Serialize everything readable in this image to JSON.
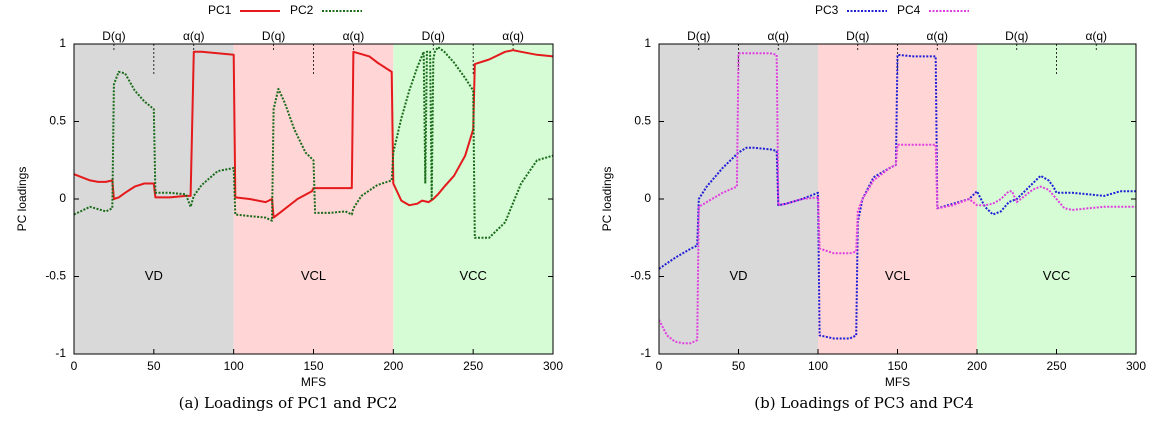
{
  "chart_data": [
    {
      "type": "line",
      "caption": "(a) Loadings of PC1 and PC2",
      "xlabel": "MFS",
      "ylabel": "PC loadings",
      "xlim": [
        0,
        300
      ],
      "ylim": [
        -1,
        1
      ],
      "xticks": [
        "0",
        "50",
        "100",
        "150",
        "200",
        "250",
        "300"
      ],
      "yticks": [
        "-1",
        "-0.5",
        "0",
        "0.5",
        "1"
      ],
      "grid": false,
      "legend_position": "top-center",
      "regions": [
        {
          "label": "VD",
          "x0": 0,
          "x1": 100,
          "color": "#d9d9d9"
        },
        {
          "label": "VCL",
          "x0": 100,
          "x1": 200,
          "color": "#ffd5d5"
        },
        {
          "label": "VCC",
          "x0": 200,
          "x1": 300,
          "color": "#d5fcd5"
        }
      ],
      "top_markers": [
        {
          "label": "D(q)",
          "x": 25
        },
        {
          "label": "",
          "x": 50
        },
        {
          "label": "α(q)",
          "x": 75
        },
        {
          "label": "D(q)",
          "x": 125
        },
        {
          "label": "",
          "x": 150
        },
        {
          "label": "α(q)",
          "x": 175
        },
        {
          "label": "D(q)",
          "x": 225
        },
        {
          "label": "",
          "x": 250
        },
        {
          "label": "α(q)",
          "x": 275
        }
      ],
      "series": [
        {
          "name": "PC1",
          "color": "#e41a1c",
          "style": "solid",
          "x": [
            0,
            5,
            10,
            15,
            20,
            24,
            25,
            28,
            32,
            38,
            44,
            50,
            51,
            60,
            70,
            73,
            75,
            80,
            90,
            100,
            101,
            110,
            120,
            122,
            124,
            125,
            130,
            140,
            149,
            150,
            160,
            170,
            174,
            175,
            185,
            190,
            199,
            200,
            205,
            210,
            215,
            218,
            222,
            225,
            228,
            232,
            238,
            245,
            250,
            251,
            260,
            270,
            275,
            280,
            290,
            300
          ],
          "y": [
            0.16,
            0.14,
            0.12,
            0.11,
            0.11,
            0.12,
            0.0,
            0.01,
            0.04,
            0.08,
            0.1,
            0.1,
            0.01,
            0.01,
            0.02,
            0.02,
            0.95,
            0.95,
            0.94,
            0.93,
            0.01,
            0.0,
            -0.02,
            -0.01,
            0.0,
            -0.12,
            -0.08,
            0.0,
            0.05,
            0.07,
            0.07,
            0.07,
            0.07,
            0.95,
            0.92,
            0.88,
            0.82,
            0.1,
            -0.01,
            -0.04,
            -0.03,
            -0.01,
            -0.02,
            0.0,
            0.03,
            0.08,
            0.15,
            0.28,
            0.45,
            0.87,
            0.9,
            0.95,
            0.96,
            0.95,
            0.93,
            0.92
          ]
        },
        {
          "name": "PC2",
          "color": "#1a6b1a",
          "style": "dotted",
          "x": [
            0,
            10,
            20,
            24,
            25,
            28,
            32,
            38,
            44,
            50,
            51,
            60,
            70,
            73,
            75,
            80,
            90,
            100,
            101,
            110,
            120,
            124,
            125,
            128,
            132,
            138,
            145,
            150,
            151,
            160,
            170,
            174,
            175,
            180,
            190,
            199,
            200,
            205,
            210,
            215,
            219,
            220,
            221,
            223,
            224,
            225,
            226,
            228,
            232,
            238,
            245,
            250,
            251,
            260,
            270,
            280,
            290,
            300
          ],
          "y": [
            -0.1,
            -0.05,
            -0.08,
            -0.06,
            0.74,
            0.82,
            0.81,
            0.7,
            0.63,
            0.58,
            0.04,
            0.04,
            0.03,
            -0.05,
            0.02,
            0.09,
            0.18,
            0.2,
            -0.1,
            -0.11,
            -0.12,
            -0.14,
            0.58,
            0.71,
            0.62,
            0.45,
            0.3,
            0.25,
            -0.09,
            -0.09,
            -0.08,
            -0.1,
            -0.06,
            0.02,
            0.09,
            0.12,
            0.3,
            0.52,
            0.7,
            0.85,
            0.95,
            0.1,
            0.95,
            0.95,
            0.0,
            0.9,
            0.95,
            0.98,
            0.95,
            0.88,
            0.78,
            0.7,
            -0.25,
            -0.25,
            -0.15,
            0.1,
            0.25,
            0.28
          ]
        }
      ]
    },
    {
      "type": "line",
      "caption": "(b) Loadings of PC3 and PC4",
      "xlabel": "MFS",
      "ylabel": "PC loadings",
      "xlim": [
        0,
        300
      ],
      "ylim": [
        -1,
        1
      ],
      "xticks": [
        "0",
        "50",
        "100",
        "150",
        "200",
        "250",
        "300"
      ],
      "yticks": [
        "-1",
        "-0.5",
        "0",
        "0.5",
        "1"
      ],
      "grid": false,
      "legend_position": "top-center",
      "regions": [
        {
          "label": "VD",
          "x0": 0,
          "x1": 100,
          "color": "#d9d9d9"
        },
        {
          "label": "VCL",
          "x0": 100,
          "x1": 200,
          "color": "#ffd5d5"
        },
        {
          "label": "VCC",
          "x0": 200,
          "x1": 300,
          "color": "#d5fcd5"
        }
      ],
      "top_markers": [
        {
          "label": "D(q)",
          "x": 25
        },
        {
          "label": "",
          "x": 50
        },
        {
          "label": "α(q)",
          "x": 75
        },
        {
          "label": "D(q)",
          "x": 125
        },
        {
          "label": "",
          "x": 150
        },
        {
          "label": "α(q)",
          "x": 175
        },
        {
          "label": "D(q)",
          "x": 225
        },
        {
          "label": "",
          "x": 250
        },
        {
          "label": "α(q)",
          "x": 275
        }
      ],
      "series": [
        {
          "name": "PC3",
          "color": "#1f1fd6",
          "style": "dotted",
          "x": [
            0,
            10,
            20,
            24,
            25,
            30,
            40,
            50,
            55,
            60,
            70,
            74,
            75,
            80,
            90,
            100,
            101,
            110,
            120,
            124,
            125,
            128,
            135,
            145,
            149,
            150,
            160,
            170,
            174,
            175,
            185,
            195,
            200,
            205,
            210,
            215,
            220,
            225,
            230,
            235,
            240,
            245,
            248,
            250,
            260,
            270,
            280,
            290,
            300
          ],
          "y": [
            -0.45,
            -0.38,
            -0.32,
            -0.3,
            0.0,
            0.08,
            0.2,
            0.3,
            0.33,
            0.33,
            0.32,
            0.31,
            -0.04,
            -0.03,
            0.0,
            0.04,
            -0.88,
            -0.9,
            -0.9,
            -0.88,
            -0.15,
            0.0,
            0.14,
            0.2,
            0.22,
            0.93,
            0.92,
            0.92,
            0.92,
            -0.06,
            -0.03,
            0.0,
            0.05,
            -0.05,
            -0.1,
            -0.08,
            -0.02,
            0.0,
            0.05,
            0.1,
            0.15,
            0.12,
            0.08,
            0.04,
            0.04,
            0.03,
            0.02,
            0.05,
            0.05
          ]
        },
        {
          "name": "PC4",
          "color": "#e03fe0",
          "style": "dotted",
          "x": [
            0,
            5,
            10,
            15,
            20,
            24,
            25,
            30,
            40,
            49,
            50,
            55,
            60,
            70,
            74,
            75,
            80,
            90,
            100,
            101,
            110,
            120,
            124,
            125,
            128,
            135,
            145,
            149,
            150,
            160,
            170,
            174,
            175,
            185,
            195,
            200,
            205,
            210,
            215,
            220,
            222,
            225,
            230,
            235,
            240,
            245,
            250,
            255,
            260,
            270,
            280,
            290,
            300
          ],
          "y": [
            -0.78,
            -0.88,
            -0.92,
            -0.93,
            -0.93,
            -0.91,
            -0.05,
            -0.02,
            0.04,
            0.08,
            0.94,
            0.94,
            0.94,
            0.94,
            0.93,
            -0.04,
            -0.03,
            0.0,
            0.01,
            -0.32,
            -0.35,
            -0.35,
            -0.34,
            -0.08,
            0.0,
            0.12,
            0.2,
            0.22,
            0.35,
            0.35,
            0.35,
            0.35,
            -0.06,
            -0.04,
            0.0,
            -0.04,
            -0.04,
            -0.03,
            0.0,
            0.05,
            0.05,
            -0.02,
            0.02,
            0.06,
            0.08,
            0.06,
            0.0,
            -0.06,
            -0.07,
            -0.06,
            -0.05,
            -0.05,
            -0.05
          ]
        }
      ]
    }
  ]
}
